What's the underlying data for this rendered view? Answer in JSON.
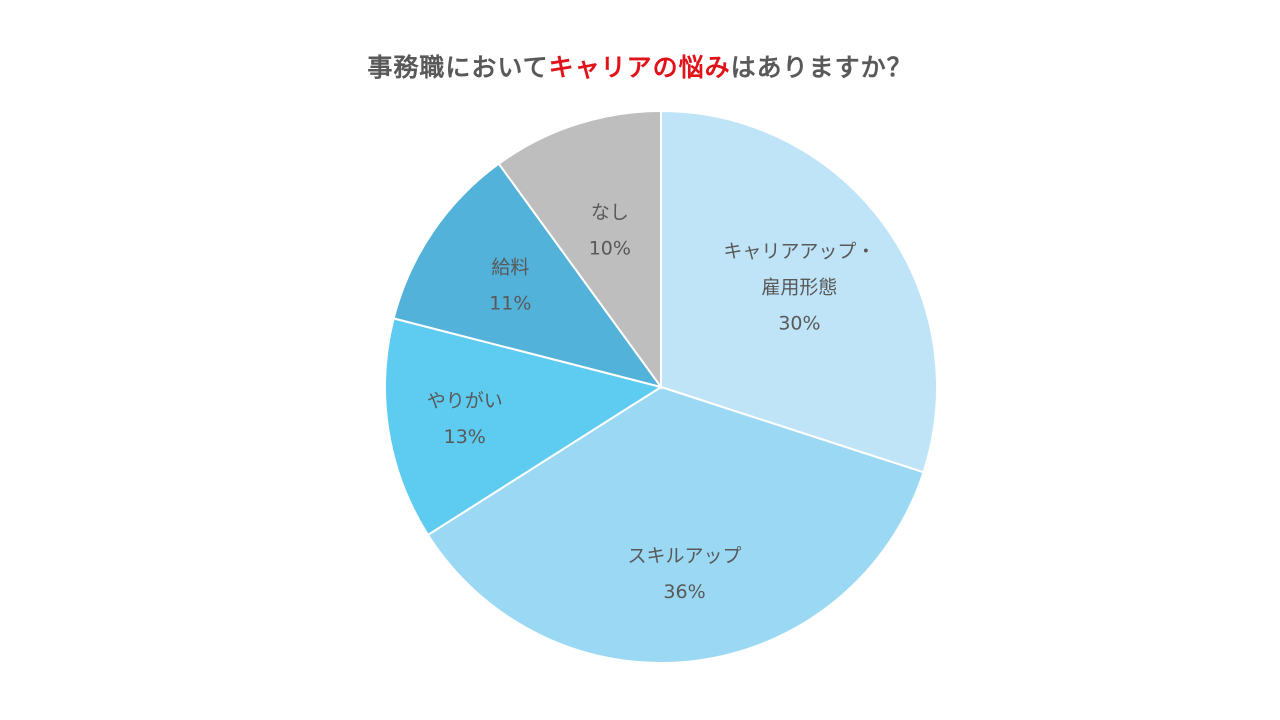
{
  "chart_data": {
    "type": "pie",
    "title": {
      "prefix": "事務職において",
      "highlight": "キャリアの悩み",
      "suffix": "はありますか？"
    },
    "start": "top",
    "direction": "clockwise",
    "slices": [
      {
        "label_lines": [
          "キャリアアップ・",
          "雇用形態"
        ],
        "value": 30,
        "value_label": "30%",
        "color": "#bfe4f7"
      },
      {
        "label_lines": [
          "スキルアップ"
        ],
        "value": 36,
        "value_label": "36%",
        "color": "#9ad8f4"
      },
      {
        "label_lines": [
          "やりがい"
        ],
        "value": 13,
        "value_label": "13%",
        "color": "#5ecbf0"
      },
      {
        "label_lines": [
          "給料"
        ],
        "value": 11,
        "value_label": "11%",
        "color": "#52b2d9"
      },
      {
        "label_lines": [
          "なし"
        ],
        "value": 10,
        "value_label": "10%",
        "color": "#bebebe"
      }
    ]
  }
}
